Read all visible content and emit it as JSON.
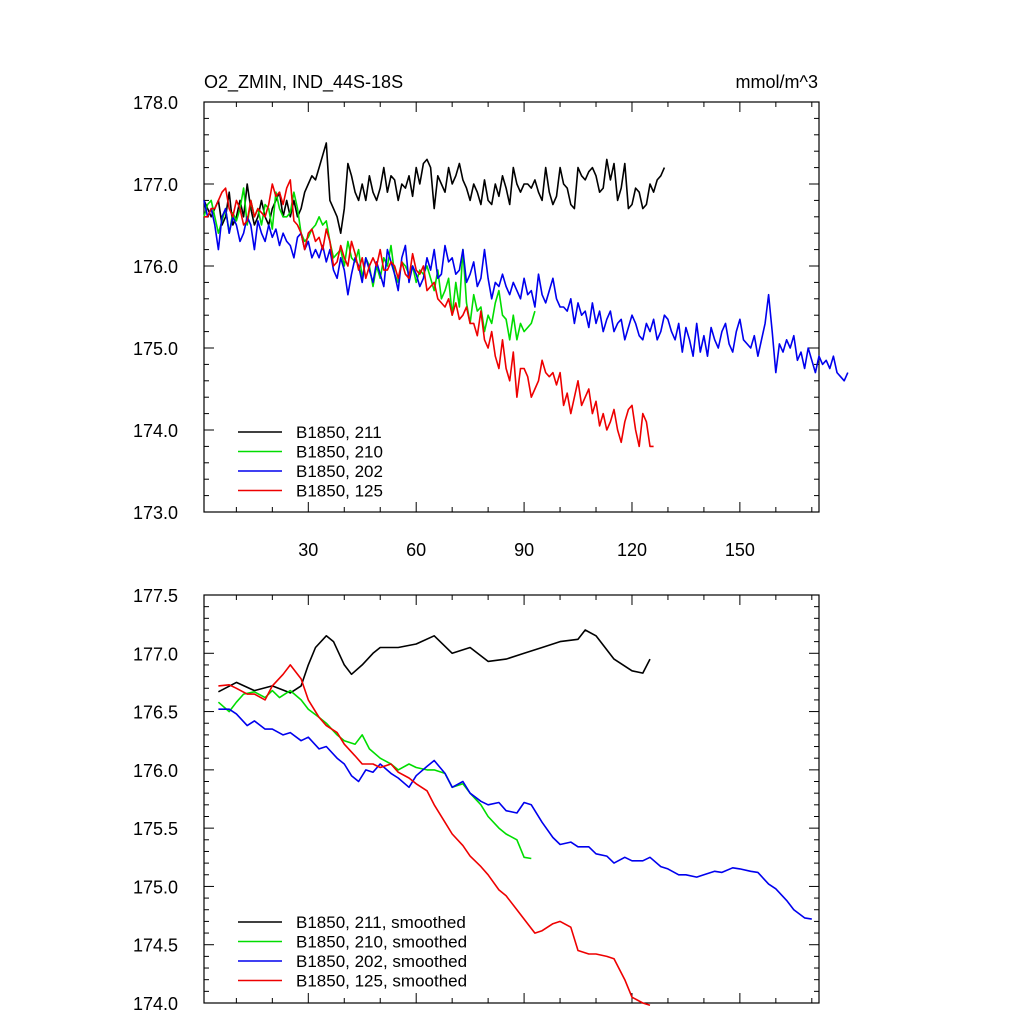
{
  "chart_data": [
    {
      "type": "line",
      "title": "O2_ZMIN, IND_44S-18S",
      "unit_label": "mmol/m^3",
      "xlabel": "",
      "ylabel": "",
      "xlim": [
        1,
        172
      ],
      "ylim": [
        173.0,
        178.0
      ],
      "x_ticks": [
        30,
        60,
        90,
        120,
        150
      ],
      "x_tick_labels": [
        "30",
        "60",
        "90",
        "120",
        "150"
      ],
      "y_ticks": [
        173,
        174,
        175,
        176,
        177,
        178
      ],
      "y_tick_labels": [
        "173.0",
        "174.0",
        "175.0",
        "176.0",
        "177.0",
        "178.0"
      ],
      "grid": false,
      "legend_position": "bottom-left",
      "series": [
        {
          "name": "B1850, 211",
          "color": "#000000",
          "x_start": 1,
          "values": [
            176.8,
            176.7,
            176.6,
            176.7,
            176.8,
            176.5,
            176.6,
            176.9,
            176.5,
            176.6,
            176.8,
            176.6,
            177.0,
            176.7,
            176.5,
            176.6,
            176.8,
            176.6,
            176.5,
            176.7,
            176.8,
            176.9,
            176.6,
            176.8,
            176.6,
            176.8,
            176.6,
            176.7,
            176.9,
            177.0,
            177.1,
            177.05,
            177.2,
            177.35,
            177.5,
            176.8,
            176.7,
            176.6,
            176.4,
            176.7,
            177.25,
            177.1,
            176.9,
            176.8,
            177.0,
            176.8,
            177.1,
            176.9,
            176.8,
            176.95,
            177.2,
            176.9,
            177.1,
            177.05,
            176.8,
            177.0,
            176.95,
            177.1,
            176.85,
            177.2,
            177.0,
            177.25,
            177.3,
            177.2,
            176.7,
            177.1,
            177.0,
            176.9,
            177.2,
            177.0,
            177.1,
            177.25,
            177.05,
            176.95,
            176.8,
            177.0,
            176.9,
            176.75,
            177.05,
            176.8,
            176.75,
            177.0,
            176.85,
            177.1,
            176.95,
            176.75,
            177.2,
            177.0,
            176.9,
            177.0,
            177.0,
            176.95,
            177.05,
            176.9,
            176.8,
            177.2,
            176.9,
            176.75,
            176.85,
            177.2,
            177.0,
            176.95,
            176.75,
            176.7,
            177.2,
            177.1,
            177.05,
            177.15,
            177.2,
            177.1,
            176.9,
            176.95,
            177.3,
            177.05,
            177.25,
            176.8,
            176.95,
            177.25,
            176.7,
            176.75,
            176.95,
            176.9,
            176.7,
            176.75,
            177.0,
            176.9,
            177.05,
            177.1,
            177.2
          ]
        },
        {
          "name": "B1850, 210",
          "color": "#00dd00",
          "x_start": 1,
          "values": [
            176.6,
            176.75,
            176.8,
            176.6,
            176.4,
            176.55,
            176.7,
            176.4,
            176.65,
            176.55,
            176.7,
            176.95,
            176.5,
            176.8,
            176.6,
            176.7,
            176.5,
            176.75,
            176.7,
            176.45,
            176.9,
            176.7,
            176.6,
            176.6,
            176.65,
            176.9,
            176.7,
            176.4,
            176.3,
            176.35,
            176.45,
            176.5,
            176.6,
            176.5,
            176.55,
            176.3,
            176.1,
            176.15,
            176.2,
            176.0,
            176.3,
            176.1,
            176.05,
            176.2,
            175.85,
            176.1,
            176.0,
            175.75,
            176.0,
            175.85,
            176.1,
            176.0,
            176.25,
            175.9,
            175.8,
            176.05,
            176.0,
            175.9,
            176.0,
            175.8,
            175.95,
            175.9,
            176.0,
            175.85,
            175.7,
            175.95,
            175.6,
            175.7,
            175.85,
            175.4,
            175.8,
            175.5,
            176.2,
            175.55,
            175.3,
            175.65,
            175.45,
            175.5,
            175.2,
            175.4,
            175.3,
            175.55,
            175.7,
            175.4,
            175.35,
            175.1,
            175.4,
            175.1,
            175.3,
            175.2,
            175.25,
            175.3,
            175.45
          ]
        },
        {
          "name": "B1850, 202",
          "color": "#0000ee",
          "x_start": 1,
          "values": [
            176.8,
            176.6,
            176.7,
            176.5,
            176.2,
            176.6,
            176.7,
            176.4,
            176.6,
            176.5,
            176.3,
            176.4,
            176.6,
            176.5,
            176.2,
            176.55,
            176.4,
            176.3,
            176.5,
            176.35,
            176.45,
            176.25,
            176.4,
            176.3,
            176.25,
            176.1,
            176.35,
            176.4,
            176.2,
            176.3,
            176.1,
            176.2,
            176.1,
            176.25,
            176.05,
            176.2,
            175.95,
            175.85,
            176.1,
            175.95,
            175.65,
            175.9,
            176.1,
            176.0,
            175.8,
            176.1,
            175.95,
            175.8,
            176.05,
            175.9,
            175.75,
            176.2,
            176.05,
            175.9,
            175.7,
            176.1,
            176.25,
            175.8,
            176.0,
            175.9,
            175.75,
            175.85,
            176.1,
            175.95,
            176.2,
            175.85,
            175.9,
            176.25,
            176.05,
            176.1,
            175.9,
            175.95,
            176.2,
            175.8,
            175.9,
            176.05,
            175.75,
            175.85,
            176.2,
            175.85,
            175.6,
            175.8,
            175.75,
            175.9,
            175.75,
            175.65,
            175.8,
            175.7,
            175.6,
            175.85,
            175.65,
            175.7,
            175.5,
            175.9,
            175.65,
            175.55,
            175.7,
            175.85,
            175.6,
            175.5,
            175.5,
            175.45,
            175.6,
            175.3,
            175.55,
            175.4,
            175.45,
            175.25,
            175.55,
            175.3,
            175.45,
            175.2,
            175.35,
            175.45,
            175.2,
            175.3,
            175.35,
            175.1,
            175.25,
            175.4,
            175.3,
            175.15,
            175.1,
            175.3,
            175.2,
            175.35,
            175.1,
            175.2,
            175.4,
            175.35,
            175.2,
            175.1,
            175.3,
            174.95,
            175.25,
            175.1,
            174.9,
            175.3,
            174.95,
            175.15,
            174.9,
            175.25,
            175.1,
            175.0,
            175.2,
            175.3,
            175.05,
            174.95,
            175.2,
            175.35,
            175.1,
            175.05,
            175.0,
            175.15,
            174.9,
            175.1,
            175.3,
            175.65,
            175.2,
            174.7,
            175.05,
            174.95,
            175.1,
            175.0,
            175.15,
            174.85,
            174.95,
            174.75,
            175.0,
            174.85,
            174.7,
            174.9,
            174.8,
            174.85,
            174.75,
            174.9,
            174.7,
            174.65,
            174.6,
            174.7
          ]
        },
        {
          "name": "B1850, 125",
          "color": "#ee0000",
          "x_start": 1,
          "values": [
            176.6,
            176.6,
            176.7,
            176.7,
            176.8,
            176.9,
            176.95,
            176.7,
            176.6,
            176.8,
            176.7,
            176.5,
            176.55,
            176.8,
            176.6,
            176.7,
            176.65,
            176.6,
            176.75,
            177.0,
            176.85,
            176.9,
            176.75,
            176.95,
            177.05,
            176.55,
            176.5,
            176.4,
            176.2,
            176.4,
            176.45,
            176.3,
            176.35,
            176.2,
            176.45,
            176.3,
            176.0,
            176.05,
            176.25,
            176.1,
            176.0,
            176.3,
            176.15,
            175.95,
            176.1,
            175.85,
            176.0,
            176.1,
            176.0,
            176.2,
            175.95,
            175.95,
            176.05,
            176.0,
            175.85,
            176.05,
            175.9,
            175.85,
            176.15,
            175.95,
            175.9,
            176.0,
            175.7,
            175.75,
            175.8,
            175.6,
            175.55,
            175.5,
            175.6,
            175.4,
            175.55,
            175.35,
            175.4,
            175.5,
            175.3,
            175.3,
            175.15,
            175.45,
            175.1,
            175.0,
            175.2,
            174.9,
            174.75,
            175.1,
            174.75,
            174.6,
            174.95,
            174.4,
            174.75,
            174.75,
            174.65,
            174.4,
            174.5,
            174.6,
            174.85,
            174.7,
            174.65,
            174.7,
            174.55,
            174.7,
            174.3,
            174.45,
            174.2,
            174.4,
            174.6,
            174.3,
            174.4,
            174.5,
            174.2,
            174.35,
            174.05,
            174.2,
            174.0,
            174.1,
            174.25,
            174.0,
            173.85,
            174.1,
            174.25,
            174.3,
            174.0,
            173.8,
            174.2,
            174.1,
            173.8,
            173.8
          ]
        }
      ]
    },
    {
      "type": "line",
      "title": "",
      "xlabel": "",
      "ylabel": "",
      "xlim": [
        1,
        172
      ],
      "ylim": [
        174.0,
        177.5
      ],
      "x_ticks": [
        30,
        60,
        90,
        120,
        150
      ],
      "y_ticks": [
        174.0,
        174.5,
        175.0,
        175.5,
        176.0,
        176.5,
        177.0,
        177.5
      ],
      "y_tick_labels": [
        "174.0",
        "174.5",
        "175.0",
        "175.5",
        "176.0",
        "176.5",
        "177.0",
        "177.5"
      ],
      "grid": false,
      "legend_position": "bottom-left",
      "series": [
        {
          "name": "B1850, 211, smoothed",
          "color": "#000000",
          "x": [
            5,
            10,
            15,
            20,
            25,
            28,
            30,
            32,
            35,
            37,
            40,
            42,
            45,
            48,
            50,
            55,
            60,
            65,
            70,
            75,
            80,
            85,
            90,
            95,
            100,
            105,
            107,
            110,
            115,
            120,
            123,
            125
          ],
          "values": [
            176.67,
            176.75,
            176.68,
            176.72,
            176.66,
            176.72,
            176.9,
            177.05,
            177.15,
            177.1,
            176.9,
            176.82,
            176.9,
            177.0,
            177.05,
            177.05,
            177.08,
            177.15,
            177.0,
            177.05,
            176.93,
            176.95,
            177.0,
            177.05,
            177.1,
            177.12,
            177.2,
            177.15,
            176.95,
            176.85,
            176.83,
            176.95
          ]
        },
        {
          "name": "B1850, 210, smoothed",
          "color": "#00dd00",
          "x": [
            5,
            8,
            10,
            12,
            15,
            18,
            20,
            22,
            25,
            28,
            30,
            33,
            35,
            38,
            40,
            43,
            45,
            47,
            50,
            53,
            55,
            58,
            60,
            63,
            65,
            68,
            70,
            73,
            75,
            78,
            80,
            83,
            85,
            88,
            90,
            92
          ],
          "values": [
            176.58,
            176.5,
            176.58,
            176.65,
            176.67,
            176.62,
            176.68,
            176.62,
            176.68,
            176.6,
            176.52,
            176.45,
            176.4,
            176.3,
            176.25,
            176.22,
            176.3,
            176.18,
            176.1,
            176.05,
            176.0,
            176.05,
            176.02,
            176.0,
            176.0,
            175.97,
            175.85,
            175.88,
            175.8,
            175.7,
            175.6,
            175.5,
            175.45,
            175.4,
            175.25,
            175.24
          ]
        },
        {
          "name": "B1850, 202, smoothed",
          "color": "#0000ee",
          "x": [
            5,
            8,
            10,
            13,
            15,
            18,
            20,
            23,
            25,
            28,
            30,
            33,
            35,
            38,
            40,
            42,
            44,
            46,
            48,
            50,
            53,
            55,
            58,
            60,
            63,
            65,
            68,
            70,
            73,
            75,
            78,
            80,
            83,
            85,
            88,
            90,
            92,
            95,
            98,
            100,
            103,
            105,
            108,
            110,
            113,
            115,
            118,
            120,
            123,
            125,
            128,
            130,
            133,
            135,
            138,
            140,
            143,
            145,
            148,
            150,
            153,
            155,
            158,
            160,
            163,
            165,
            168,
            170
          ],
          "values": [
            176.52,
            176.52,
            176.48,
            176.38,
            176.42,
            176.35,
            176.35,
            176.3,
            176.32,
            176.25,
            176.28,
            176.18,
            176.2,
            176.1,
            176.05,
            175.95,
            175.9,
            176.0,
            175.98,
            176.05,
            175.97,
            175.93,
            175.85,
            175.95,
            176.03,
            176.08,
            175.97,
            175.85,
            175.9,
            175.8,
            175.73,
            175.7,
            175.72,
            175.65,
            175.63,
            175.72,
            175.7,
            175.55,
            175.42,
            175.36,
            175.38,
            175.34,
            175.34,
            175.28,
            175.26,
            175.2,
            175.25,
            175.22,
            175.22,
            175.25,
            175.17,
            175.15,
            175.1,
            175.1,
            175.08,
            175.1,
            175.13,
            175.12,
            175.16,
            175.15,
            175.13,
            175.12,
            175.02,
            174.98,
            174.88,
            174.8,
            174.73,
            174.72
          ]
        },
        {
          "name": "B1850, 125, smoothed",
          "color": "#ee0000",
          "x": [
            5,
            8,
            10,
            13,
            15,
            18,
            20,
            23,
            25,
            28,
            30,
            33,
            35,
            38,
            40,
            43,
            45,
            48,
            50,
            53,
            55,
            58,
            60,
            63,
            65,
            68,
            70,
            73,
            75,
            78,
            80,
            83,
            85,
            88,
            90,
            93,
            95,
            98,
            100,
            103,
            105,
            108,
            110,
            113,
            115,
            118,
            120,
            123,
            125
          ],
          "values": [
            176.72,
            176.73,
            176.7,
            176.65,
            176.65,
            176.6,
            176.72,
            176.82,
            176.9,
            176.78,
            176.6,
            176.45,
            176.38,
            176.32,
            176.22,
            176.12,
            176.05,
            176.05,
            176.02,
            176.05,
            175.98,
            175.93,
            175.88,
            175.82,
            175.7,
            175.55,
            175.45,
            175.35,
            175.26,
            175.17,
            175.1,
            174.97,
            174.92,
            174.8,
            174.72,
            174.6,
            174.62,
            174.68,
            174.7,
            174.65,
            174.45,
            174.42,
            174.42,
            174.4,
            174.38,
            174.2,
            174.05,
            174.0,
            173.98
          ]
        }
      ]
    }
  ]
}
